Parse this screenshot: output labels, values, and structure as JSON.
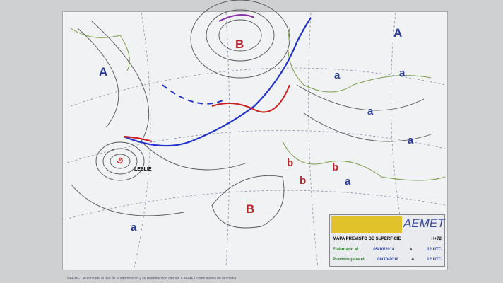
{
  "map": {
    "pressure_labels": [
      {
        "text": "A",
        "type": "high"
      },
      {
        "text": "A",
        "type": "high"
      },
      {
        "text": "B",
        "type": "low"
      },
      {
        "text": "B",
        "type": "low"
      },
      {
        "text": "a",
        "type": "high"
      },
      {
        "text": "a",
        "type": "high"
      },
      {
        "text": "a",
        "type": "high"
      },
      {
        "text": "a",
        "type": "high"
      },
      {
        "text": "a",
        "type": "high"
      },
      {
        "text": "a",
        "type": "high"
      },
      {
        "text": "b",
        "type": "low"
      },
      {
        "text": "b",
        "type": "low"
      },
      {
        "text": "b",
        "type": "low"
      }
    ],
    "storm_name": "LESLIE",
    "colors": {
      "high": "#2a3a9a",
      "low": "#b8262a",
      "cold_front": "#2233cc",
      "warm_front": "#cc2222"
    }
  },
  "legend": {
    "brand": "AEMET",
    "title": "MAPA PREVISTO DE SUPERFICIE",
    "range": "H+72",
    "issued_label": "Elaborado el",
    "issued_date": "05/10/2018",
    "issued_sep": "a",
    "issued_time": "12 UTC",
    "valid_label": "Previsto para el",
    "valid_date": "08/10/2018",
    "valid_sep": "a",
    "valid_time": "12 UTC"
  },
  "footer": "©AEMET. Autorizado el uso de la información y su reproducción citando a AEMET como autora de la misma"
}
